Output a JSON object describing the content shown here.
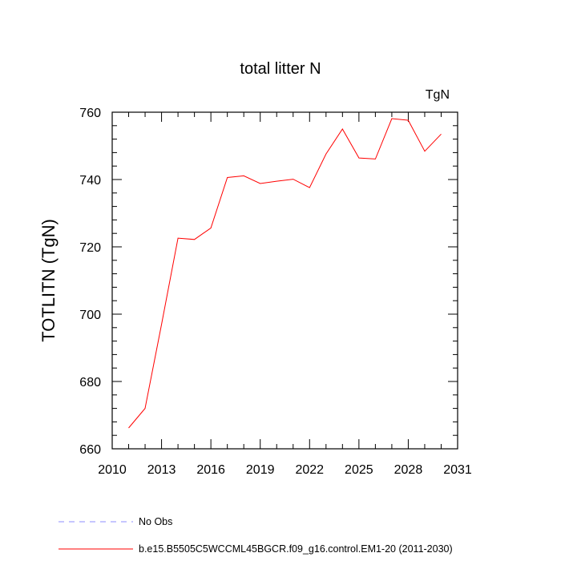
{
  "chart_data": {
    "type": "line",
    "title": "total litter N",
    "units_label": "TgN",
    "ylabel": "TOTLITN  (TgN)",
    "xlabel": "",
    "xlim": [
      2010,
      2031
    ],
    "ylim": [
      660,
      760
    ],
    "x_ticks": [
      2010,
      2013,
      2016,
      2019,
      2022,
      2025,
      2028,
      2031
    ],
    "y_ticks": [
      660,
      680,
      700,
      720,
      740,
      760
    ],
    "grid": false,
    "series": [
      {
        "name": "b.e15.B5505C5WCCML45BGCR.f09_g16.control.EM1-20 (2011-2030)",
        "color": "#ff0000",
        "style": "solid",
        "x": [
          2011,
          2012,
          2013,
          2014,
          2015,
          2016,
          2017,
          2018,
          2019,
          2020,
          2021,
          2022,
          2023,
          2024,
          2025,
          2026,
          2027,
          2028,
          2029,
          2030
        ],
        "y": [
          666.2,
          672.0,
          697.0,
          722.6,
          722.2,
          725.6,
          740.6,
          741.1,
          738.8,
          739.5,
          740.1,
          737.6,
          747.6,
          755.0,
          746.4,
          746.1,
          758.1,
          757.6,
          748.4,
          753.5
        ]
      }
    ],
    "legend": [
      {
        "label": "No Obs",
        "color": "#8c8cff",
        "style": "dashed"
      },
      {
        "label": "b.e15.B5505C5WCCML45BGCR.f09_g16.control.EM1-20 (2011-2030)",
        "color": "#ff0000",
        "style": "solid"
      }
    ],
    "legend_placement": "bottom-left"
  }
}
